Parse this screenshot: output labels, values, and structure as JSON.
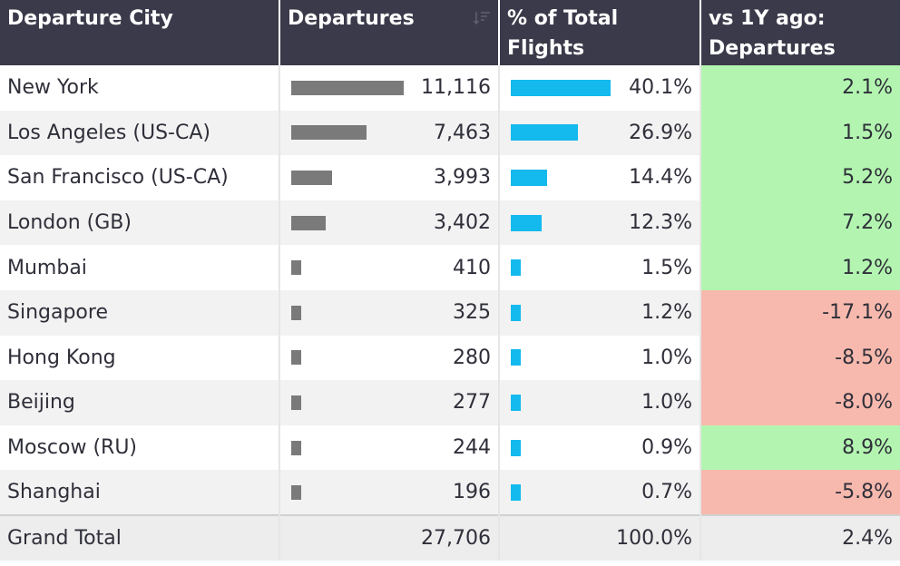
{
  "headers": {
    "city": "Departure City",
    "departures": "Departures",
    "pct": "% of Total Flights",
    "change": "vs 1Y ago: Departures"
  },
  "colors": {
    "header_bg": "#3b3a4a",
    "departures_bar": "#7a7a7a",
    "pct_bar": "#14b9ee",
    "positive": "#b3f5b0",
    "negative": "#f7b9ad"
  },
  "icons": {
    "sort": "sort-descending-icon"
  },
  "rows": [
    {
      "city": "New York",
      "departures": "11,116",
      "departures_value": 11116,
      "pct": "40.1%",
      "pct_value": 40.1,
      "change": "2.1%",
      "change_value": 2.1
    },
    {
      "city": "Los Angeles (US-CA)",
      "departures": "7,463",
      "departures_value": 7463,
      "pct": "26.9%",
      "pct_value": 26.9,
      "change": "1.5%",
      "change_value": 1.5
    },
    {
      "city": "San Francisco (US-CA)",
      "departures": "3,993",
      "departures_value": 3993,
      "pct": "14.4%",
      "pct_value": 14.4,
      "change": "5.2%",
      "change_value": 5.2
    },
    {
      "city": "London (GB)",
      "departures": "3,402",
      "departures_value": 3402,
      "pct": "12.3%",
      "pct_value": 12.3,
      "change": "7.2%",
      "change_value": 7.2
    },
    {
      "city": "Mumbai",
      "departures": "410",
      "departures_value": 410,
      "pct": "1.5%",
      "pct_value": 1.5,
      "change": "1.2%",
      "change_value": 1.2
    },
    {
      "city": "Singapore",
      "departures": "325",
      "departures_value": 325,
      "pct": "1.2%",
      "pct_value": 1.2,
      "change": "-17.1%",
      "change_value": -17.1
    },
    {
      "city": "Hong Kong",
      "departures": "280",
      "departures_value": 280,
      "pct": "1.0%",
      "pct_value": 1.0,
      "change": "-8.5%",
      "change_value": -8.5
    },
    {
      "city": "Beijing",
      "departures": "277",
      "departures_value": 277,
      "pct": "1.0%",
      "pct_value": 1.0,
      "change": "-8.0%",
      "change_value": -8.0
    },
    {
      "city": "Moscow (RU)",
      "departures": "244",
      "departures_value": 244,
      "pct": "0.9%",
      "pct_value": 0.9,
      "change": "8.9%",
      "change_value": 8.9
    },
    {
      "city": "Shanghai",
      "departures": "196",
      "departures_value": 196,
      "pct": "0.7%",
      "pct_value": 0.7,
      "change": "-5.8%",
      "change_value": -5.8
    }
  ],
  "total": {
    "label": "Grand Total",
    "departures": "27,706",
    "pct": "100.0%",
    "change": "2.4%"
  }
}
